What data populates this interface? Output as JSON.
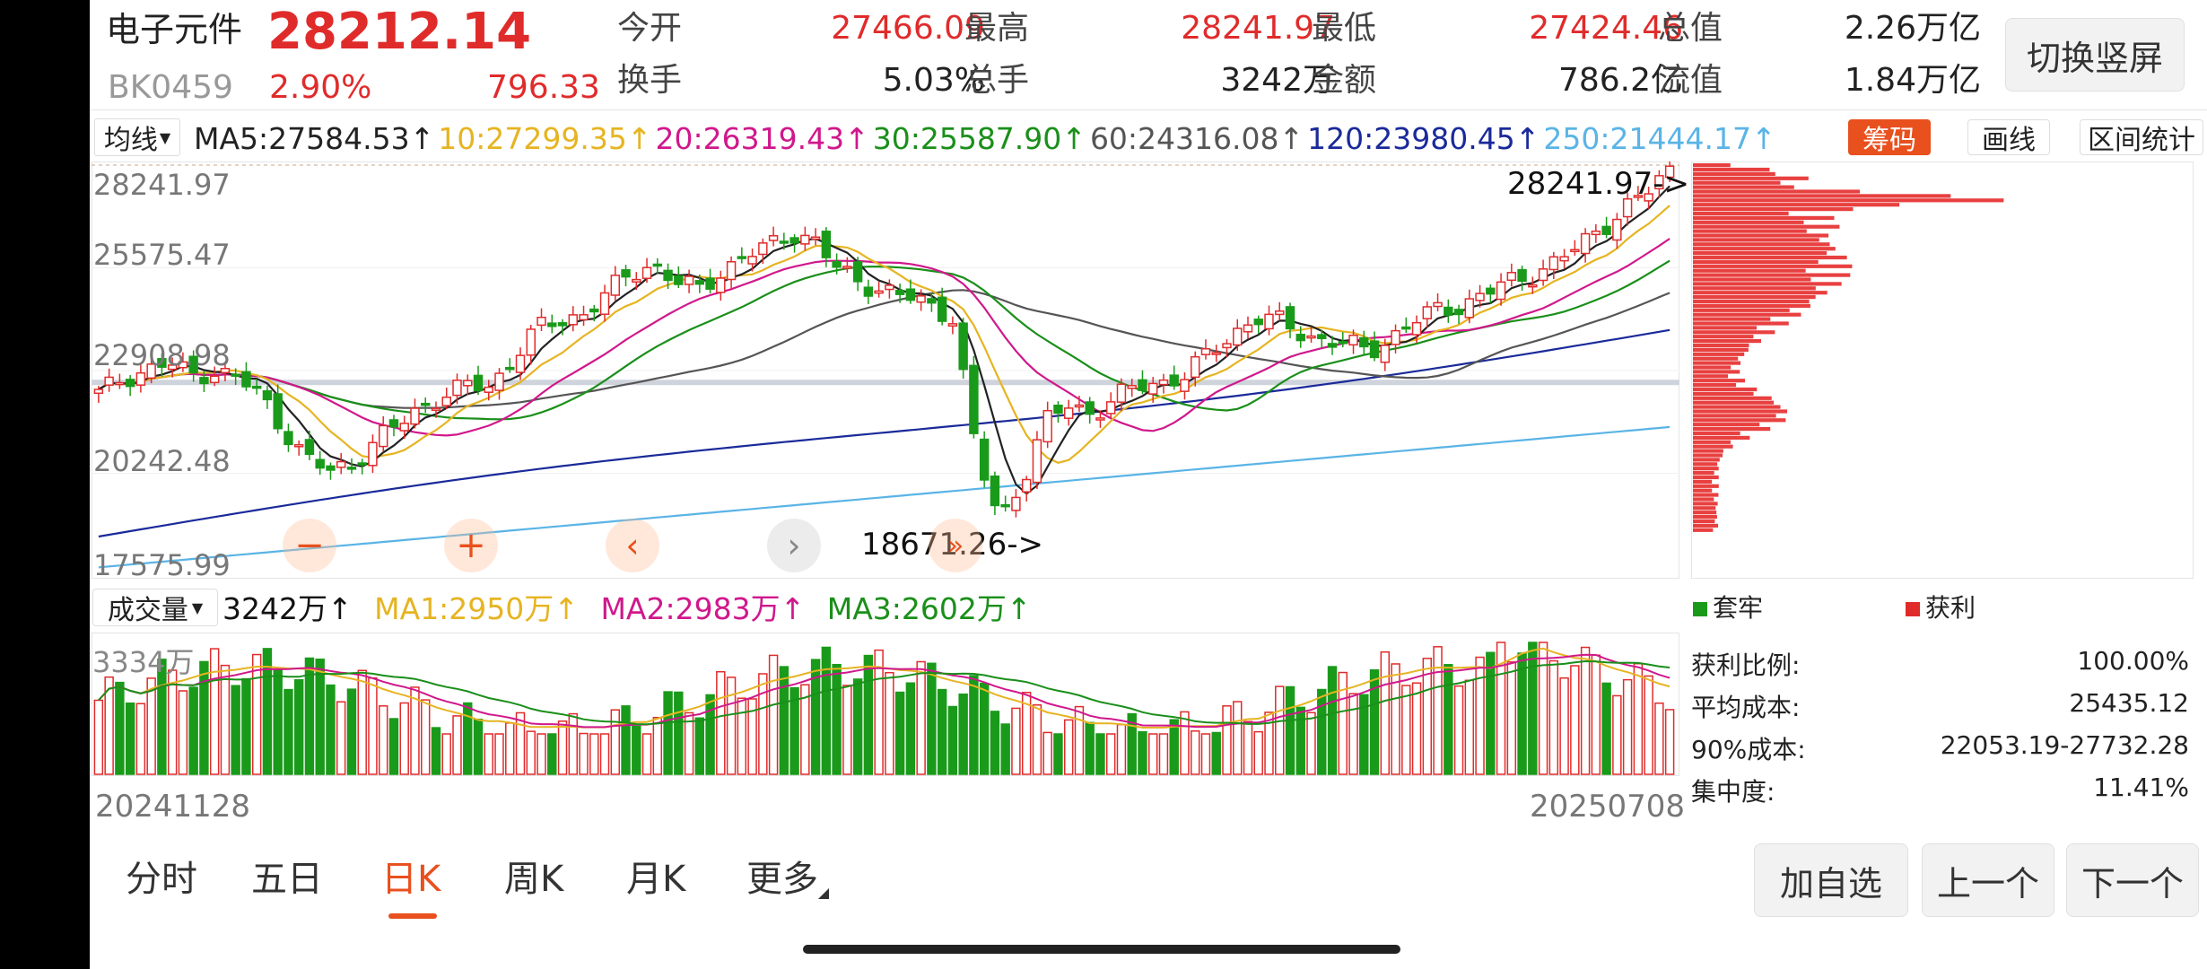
{
  "header": {
    "name": "电子元件",
    "price": "28212.14",
    "code": "BK0459",
    "change_pct": "2.90%",
    "change_abs": "796.33",
    "stats": [
      {
        "label": "今开",
        "value": "27466.09",
        "tone": "red"
      },
      {
        "label": "最高",
        "value": "28241.97",
        "tone": "red"
      },
      {
        "label": "最低",
        "value": "27424.46",
        "tone": "red"
      },
      {
        "label": "总值",
        "value": "2.26万亿",
        "tone": "dark"
      },
      {
        "label": "换手",
        "value": "5.03%",
        "tone": "dark"
      },
      {
        "label": "总手",
        "value": "3242万",
        "tone": "dark"
      },
      {
        "label": "金额",
        "value": "786.2亿",
        "tone": "dark"
      },
      {
        "label": "流值",
        "value": "1.84万亿",
        "tone": "dark"
      }
    ],
    "switch_button": "切换竖屏"
  },
  "ma_bar": {
    "selector": "均线",
    "items": [
      {
        "text": "MA5:27584.53↑",
        "color": "#222222"
      },
      {
        "text": "10:27299.35↑",
        "color": "#e6b422"
      },
      {
        "text": "20:26319.43↑",
        "color": "#d0188c"
      },
      {
        "text": "30:25587.90↑",
        "color": "#1a8f1a"
      },
      {
        "text": "60:24316.08↑",
        "color": "#555555"
      },
      {
        "text": "120:23980.45↑",
        "color": "#1a2a9a"
      },
      {
        "text": "250:21444.17↑",
        "color": "#5ab4e6"
      }
    ]
  },
  "tools": {
    "chouma": "筹码",
    "huaxian": "画线",
    "qujian": "区间统计"
  },
  "price_axis": [
    "28241.97",
    "25575.47",
    "22908.98",
    "20242.48",
    "17575.99"
  ],
  "annotations": {
    "high": "28241.97->",
    "low": "18671.26->"
  },
  "nav_controls": [
    "minus",
    "plus",
    "left",
    "right",
    "right-double"
  ],
  "volume": {
    "selector": "成交量",
    "current": "3242万↑",
    "ma1": "MA1:2950万↑",
    "ma2": "MA2:2983万↑",
    "ma3": "MA3:2602万↑",
    "axis_top": "3334万",
    "start_date": "20241128",
    "end_date": "20250708"
  },
  "chip": {
    "legend_loss": "套牢",
    "legend_profit": "获利",
    "stats": [
      {
        "label": "获利比例:",
        "value": "100.00%"
      },
      {
        "label": "平均成本:",
        "value": "25435.12"
      },
      {
        "label": "90%成本:",
        "value": "22053.19-27732.28"
      },
      {
        "label": "集中度:",
        "value": "11.41%"
      }
    ]
  },
  "tabs": [
    "分时",
    "五日",
    "日K",
    "周K",
    "月K",
    "更多"
  ],
  "active_tab": "日K",
  "bottom_buttons": [
    "加自选",
    "上一个",
    "下一个"
  ],
  "colors": {
    "up": "#e02b2b",
    "down": "#1a9a1a",
    "accent": "#e8501e"
  },
  "chart_data": {
    "type": "candlestick",
    "ylim": [
      17575.99,
      28241.97
    ],
    "high": 28241.97,
    "low": 18671.26,
    "last_close": 28212.14,
    "close_path": [
      22300,
      22700,
      22900,
      23100,
      22800,
      22900,
      22700,
      22300,
      21400,
      20600,
      20300,
      20500,
      21100,
      21500,
      22000,
      22300,
      22500,
      22500,
      23300,
      24000,
      24200,
      24400,
      24900,
      25400,
      25700,
      25200,
      25000,
      25500,
      25900,
      26100,
      26500,
      26300,
      25500,
      25200,
      25000,
      24800,
      24600,
      24300,
      20700,
      19000,
      20100,
      21600,
      22000,
      21800,
      22200,
      22500,
      22600,
      22800,
      23300,
      23800,
      24300,
      24200,
      23900,
      23700,
      23600,
      23400,
      23800,
      24200,
      24500,
      24600,
      24900,
      25200,
      25400,
      25700,
      26100,
      26600,
      27100,
      27500,
      28200
    ]
  }
}
